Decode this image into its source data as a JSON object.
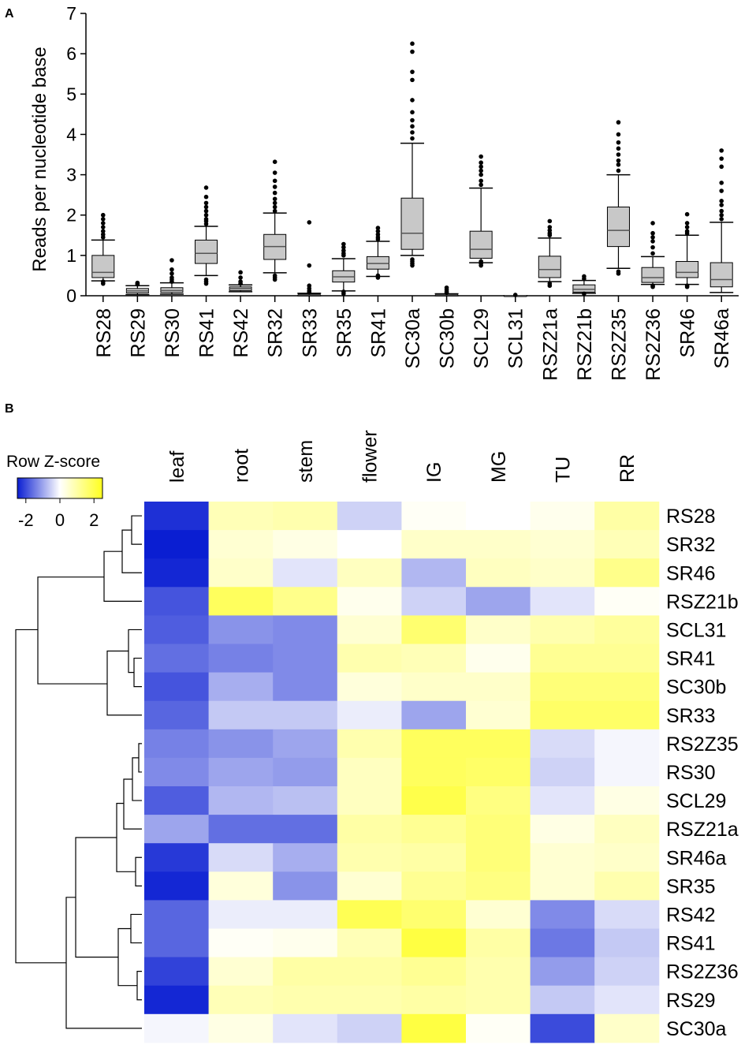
{
  "chart_data": [
    {
      "panel_label": "A",
      "type": "box",
      "ylabel": "Reads per nucleotide base",
      "xlabel": "",
      "ylim": [
        0,
        7
      ],
      "yticks": [
        0,
        1,
        2,
        3,
        4,
        5,
        6,
        7
      ],
      "categories": [
        "RS28",
        "RS29",
        "RS30",
        "RS41",
        "RS42",
        "SR32",
        "SR33",
        "SR35",
        "SR41",
        "SC30a",
        "SC30b",
        "SCL29",
        "SCL31",
        "RSZ21a",
        "RSZ21b",
        "RS2Z35",
        "RS2Z36",
        "SR46",
        "SR46a"
      ],
      "boxes": [
        {
          "wlo": 0.37,
          "q1": 0.45,
          "med": 0.58,
          "q3": 1.0,
          "whi": 1.38,
          "out": [
            1.45,
            1.52,
            1.6,
            1.7,
            1.8,
            1.9,
            2.0,
            0.3,
            0.35
          ]
        },
        {
          "wlo": 0.03,
          "q1": 0.07,
          "med": 0.12,
          "q3": 0.18,
          "whi": 0.25,
          "out": [
            0.28,
            0.3,
            0.32
          ]
        },
        {
          "wlo": 0.04,
          "q1": 0.08,
          "med": 0.13,
          "q3": 0.2,
          "whi": 0.32,
          "out": [
            0.35,
            0.4,
            0.45,
            0.55,
            0.65,
            0.88
          ]
        },
        {
          "wlo": 0.5,
          "q1": 0.8,
          "med": 1.05,
          "q3": 1.38,
          "whi": 1.72,
          "out": [
            1.78,
            1.85,
            1.9,
            2.0,
            2.1,
            2.2,
            2.3,
            2.45,
            2.68,
            0.3,
            0.35,
            0.4
          ]
        },
        {
          "wlo": 0.1,
          "q1": 0.13,
          "med": 0.18,
          "q3": 0.22,
          "whi": 0.27,
          "out": [
            0.3,
            0.35,
            0.45,
            0.58
          ]
        },
        {
          "wlo": 0.57,
          "q1": 0.9,
          "med": 1.22,
          "q3": 1.52,
          "whi": 2.05,
          "out": [
            2.1,
            2.2,
            2.3,
            2.4,
            2.55,
            2.7,
            2.85,
            3.05,
            3.32,
            0.4,
            0.45,
            0.5
          ]
        },
        {
          "wlo": 0.0,
          "q1": 0.01,
          "med": 0.02,
          "q3": 0.04,
          "whi": 0.06,
          "out": [
            0.08,
            0.12,
            0.18,
            0.25,
            0.75,
            1.82
          ]
        },
        {
          "wlo": 0.12,
          "q1": 0.34,
          "med": 0.47,
          "q3": 0.62,
          "whi": 0.92,
          "out": [
            1.0,
            1.05,
            1.12,
            1.2,
            1.28,
            0.1,
            0.05
          ]
        },
        {
          "wlo": 0.48,
          "q1": 0.66,
          "med": 0.8,
          "q3": 0.97,
          "whi": 1.35,
          "out": [
            1.4,
            1.45,
            1.52,
            1.6,
            1.68,
            0.45,
            0.5
          ]
        },
        {
          "wlo": 1.0,
          "q1": 1.15,
          "med": 1.55,
          "q3": 2.42,
          "whi": 3.78,
          "out": [
            3.9,
            4.05,
            4.2,
            4.35,
            4.55,
            4.85,
            5.35,
            5.55,
            6.05,
            6.25,
            0.75,
            0.8,
            0.85,
            0.9
          ]
        },
        {
          "wlo": 0.0,
          "q1": 0.01,
          "med": 0.02,
          "q3": 0.03,
          "whi": 0.05,
          "out": [
            0.07,
            0.1,
            0.15,
            0.2
          ]
        },
        {
          "wlo": 0.82,
          "q1": 0.93,
          "med": 1.15,
          "q3": 1.6,
          "whi": 2.67,
          "out": [
            2.75,
            2.85,
            3.0,
            3.1,
            3.2,
            3.3,
            3.45,
            0.75,
            0.8,
            0.85
          ]
        },
        {
          "wlo": 0.0,
          "q1": 0.0,
          "med": 0.0,
          "q3": 0.0,
          "whi": 0.0,
          "out": [
            0.02
          ]
        },
        {
          "wlo": 0.35,
          "q1": 0.45,
          "med": 0.65,
          "q3": 0.98,
          "whi": 1.43,
          "out": [
            1.5,
            1.55,
            1.62,
            1.7,
            1.85,
            0.3,
            0.25
          ]
        },
        {
          "wlo": 0.06,
          "q1": 0.09,
          "med": 0.16,
          "q3": 0.27,
          "whi": 0.38,
          "out": [
            0.42,
            0.48,
            0.05
          ]
        },
        {
          "wlo": 0.68,
          "q1": 1.22,
          "med": 1.62,
          "q3": 2.2,
          "whi": 3.0,
          "out": [
            3.1,
            3.25,
            3.35,
            3.5,
            3.65,
            3.8,
            4.0,
            4.3,
            0.55,
            0.6
          ]
        },
        {
          "wlo": 0.28,
          "q1": 0.33,
          "med": 0.45,
          "q3": 0.7,
          "whi": 0.97,
          "out": [
            1.05,
            1.2,
            1.35,
            1.45,
            1.55,
            1.8,
            0.22,
            0.25
          ]
        },
        {
          "wlo": 0.28,
          "q1": 0.45,
          "med": 0.58,
          "q3": 0.85,
          "whi": 1.5,
          "out": [
            1.55,
            1.6,
            1.7,
            1.8,
            2.02,
            0.22,
            0.25
          ]
        },
        {
          "wlo": 0.08,
          "q1": 0.22,
          "med": 0.4,
          "q3": 0.82,
          "whi": 1.82,
          "out": [
            1.9,
            2.0,
            2.1,
            2.25,
            2.35,
            2.6,
            2.8,
            3.2,
            3.4,
            3.6
          ]
        }
      ]
    },
    {
      "panel_label": "B",
      "type": "heatmap",
      "legend_title": "Row Z-score",
      "legend_ticks": [
        "-2",
        "0",
        "2"
      ],
      "colorscale": {
        "low": "#0a1ed2",
        "mid": "#ffffff",
        "high": "#ffff1e",
        "min": -2.5,
        "max": 2.5
      },
      "columns": [
        "leaf",
        "root",
        "stem",
        "flower",
        "IG",
        "MG",
        "TU",
        "RR"
      ],
      "rows": [
        "RS28",
        "SR32",
        "SR46",
        "RSZ21b",
        "SCL31",
        "SR41",
        "SC30b",
        "SR33",
        "RS2Z35",
        "RS30",
        "SCL29",
        "RSZ21a",
        "SR46a",
        "SR35",
        "RS42",
        "RS41",
        "RS2Z36",
        "RS29",
        "SC30a"
      ],
      "values": [
        [
          -2.3,
          0.8,
          0.9,
          -0.5,
          0.1,
          0.0,
          0.2,
          1.0
        ],
        [
          -2.5,
          0.5,
          0.3,
          0.0,
          0.6,
          0.6,
          0.5,
          0.8
        ],
        [
          -2.4,
          0.6,
          -0.3,
          0.7,
          -0.8,
          0.7,
          0.6,
          1.3
        ],
        [
          -1.9,
          1.8,
          1.3,
          0.2,
          -0.5,
          -1.0,
          -0.3,
          0.1
        ],
        [
          -1.8,
          -1.2,
          -1.3,
          0.5,
          1.6,
          0.6,
          0.9,
          1.1
        ],
        [
          -1.6,
          -1.4,
          -1.3,
          0.9,
          0.8,
          0.2,
          1.2,
          1.2
        ],
        [
          -1.9,
          -0.9,
          -1.3,
          0.4,
          0.6,
          0.6,
          1.5,
          1.5
        ],
        [
          -1.7,
          -0.6,
          -0.6,
          -0.2,
          -1.0,
          0.5,
          1.7,
          1.7
        ],
        [
          -1.4,
          -1.2,
          -1.0,
          0.9,
          1.8,
          1.8,
          -0.4,
          -0.1
        ],
        [
          -1.3,
          -1.0,
          -1.1,
          0.7,
          1.8,
          1.7,
          -0.5,
          -0.1
        ],
        [
          -1.8,
          -0.8,
          -0.7,
          0.7,
          2.0,
          1.4,
          -0.3,
          0.3
        ],
        [
          -1.0,
          -1.6,
          -1.6,
          1.0,
          1.2,
          1.5,
          0.3,
          0.7
        ],
        [
          -2.2,
          -0.4,
          -0.9,
          0.9,
          1.0,
          1.5,
          0.5,
          0.6
        ],
        [
          -2.4,
          0.4,
          -1.2,
          0.5,
          1.2,
          1.4,
          0.5,
          0.9
        ],
        [
          -1.7,
          -0.2,
          -0.2,
          1.9,
          1.6,
          0.5,
          -1.3,
          -0.4
        ],
        [
          -1.7,
          0.1,
          0.2,
          0.8,
          2.1,
          1.0,
          -1.5,
          -0.6
        ],
        [
          -2.1,
          0.5,
          1.0,
          1.0,
          1.2,
          0.9,
          -1.1,
          -0.5
        ],
        [
          -2.4,
          0.8,
          0.9,
          0.9,
          1.0,
          0.9,
          -0.6,
          -0.3
        ],
        [
          -0.1,
          0.3,
          -0.3,
          -0.5,
          2.1,
          0.1,
          -2.0,
          0.6
        ]
      ]
    }
  ]
}
